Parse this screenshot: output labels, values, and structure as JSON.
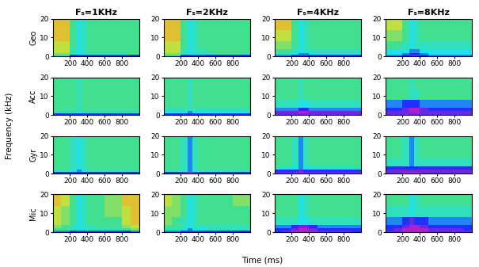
{
  "chart_data": {
    "type": "heatmap",
    "xlabel": "Time (ms)",
    "ylabel": "Frequency (kHz)",
    "columns": [
      "Fₛ=1KHz",
      "Fₛ=2KHz",
      "Fₛ=4KHz",
      "Fₛ=8KHz"
    ],
    "rows": [
      "Geo",
      "Acc",
      "Gyr",
      "Mic"
    ],
    "xlim": [
      0,
      1000
    ],
    "xticks": [
      200,
      400,
      600,
      800
    ],
    "ylim": [
      0,
      20
    ],
    "yticks": [
      0,
      10,
      20
    ],
    "time_edges": [
      0,
      100,
      200,
      280,
      330,
      400,
      500,
      600,
      800,
      900,
      1000
    ],
    "freq_edges": [
      0,
      1,
      2,
      4,
      8,
      14,
      20
    ],
    "color_range": [
      0,
      10
    ],
    "cells": [
      [
        [
          [
            4,
            4,
            2,
            1,
            1,
            1,
            1,
            1,
            1,
            2
          ],
          [
            7,
            7,
            5,
            4,
            4,
            5,
            5,
            5,
            5,
            6
          ],
          [
            8,
            8,
            5,
            4,
            5,
            6,
            6,
            6,
            6,
            6
          ],
          [
            8,
            8,
            6,
            4,
            5,
            6,
            6,
            6,
            6,
            6
          ],
          [
            9,
            9,
            6,
            4,
            5,
            6,
            6,
            6,
            6,
            6
          ],
          [
            9,
            9,
            6,
            4,
            5,
            6,
            6,
            6,
            6,
            6
          ]
        ],
        [
          [
            4,
            4,
            2,
            1,
            1,
            1,
            2,
            2,
            2,
            2
          ],
          [
            7,
            7,
            5,
            4,
            4,
            5,
            5,
            5,
            5,
            5
          ],
          [
            8,
            8,
            5,
            4,
            5,
            5,
            6,
            6,
            6,
            6
          ],
          [
            8,
            8,
            6,
            4,
            5,
            6,
            6,
            6,
            6,
            6
          ],
          [
            9,
            9,
            6,
            4,
            5,
            6,
            6,
            6,
            6,
            6
          ],
          [
            9,
            9,
            6,
            4,
            5,
            6,
            6,
            6,
            6,
            6
          ]
        ],
        [
          [
            3,
            3,
            2,
            1,
            1,
            2,
            2,
            2,
            2,
            2
          ],
          [
            5,
            5,
            4,
            3,
            3,
            4,
            4,
            4,
            4,
            4
          ],
          [
            6,
            6,
            5,
            4,
            5,
            5,
            5,
            5,
            5,
            5
          ],
          [
            7,
            7,
            6,
            4,
            5,
            6,
            6,
            6,
            6,
            6
          ],
          [
            8,
            8,
            6,
            4,
            5,
            6,
            6,
            6,
            6,
            6
          ],
          [
            9,
            9,
            6,
            4,
            5,
            6,
            6,
            6,
            6,
            6
          ]
        ],
        [
          [
            3,
            3,
            2,
            1,
            1,
            2,
            3,
            3,
            3,
            3
          ],
          [
            4,
            4,
            3,
            2,
            2,
            3,
            4,
            4,
            4,
            4
          ],
          [
            4,
            4,
            4,
            3,
            3,
            4,
            4,
            4,
            4,
            4
          ],
          [
            6,
            6,
            5,
            4,
            5,
            5,
            5,
            5,
            5,
            5
          ],
          [
            7,
            7,
            6,
            4,
            5,
            6,
            6,
            6,
            6,
            6
          ],
          [
            8,
            8,
            6,
            4,
            5,
            6,
            6,
            6,
            6,
            6
          ]
        ]
      ],
      [
        [
          [
            2,
            2,
            2,
            2,
            2,
            2,
            2,
            2,
            2,
            2
          ],
          [
            5,
            5,
            5,
            4,
            5,
            5,
            5,
            5,
            5,
            5
          ],
          [
            6,
            6,
            6,
            5,
            6,
            6,
            6,
            6,
            6,
            6
          ],
          [
            6,
            6,
            6,
            5,
            6,
            6,
            6,
            6,
            6,
            6
          ],
          [
            6,
            6,
            6,
            5,
            6,
            6,
            6,
            6,
            6,
            6
          ],
          [
            6,
            6,
            6,
            5,
            6,
            6,
            6,
            6,
            6,
            6
          ]
        ],
        [
          [
            2,
            2,
            2,
            2,
            2,
            2,
            2,
            2,
            2,
            2
          ],
          [
            4,
            4,
            4,
            3,
            4,
            4,
            4,
            4,
            4,
            4
          ],
          [
            5,
            5,
            5,
            5,
            5,
            5,
            5,
            5,
            5,
            5
          ],
          [
            6,
            6,
            6,
            5,
            6,
            6,
            6,
            6,
            6,
            6
          ],
          [
            6,
            6,
            6,
            5,
            6,
            6,
            6,
            6,
            6,
            6
          ],
          [
            6,
            6,
            6,
            5,
            6,
            6,
            6,
            6,
            6,
            6
          ]
        ],
        [
          [
            1,
            1,
            1,
            1,
            1,
            1,
            1,
            1,
            1,
            1
          ],
          [
            1,
            1,
            1,
            0,
            0,
            1,
            1,
            1,
            1,
            1
          ],
          [
            3,
            3,
            3,
            2,
            2,
            3,
            3,
            3,
            3,
            3
          ],
          [
            5,
            5,
            5,
            4,
            4,
            5,
            5,
            5,
            5,
            5
          ],
          [
            6,
            6,
            6,
            5,
            6,
            6,
            6,
            6,
            6,
            6
          ],
          [
            6,
            6,
            6,
            5,
            6,
            6,
            6,
            6,
            6,
            6
          ]
        ],
        [
          [
            1,
            1,
            1,
            1,
            1,
            1,
            1,
            1,
            1,
            1
          ],
          [
            1,
            1,
            1,
            0,
            0,
            1,
            1,
            1,
            1,
            1
          ],
          [
            2,
            2,
            1,
            0,
            0,
            1,
            2,
            2,
            2,
            2
          ],
          [
            3,
            3,
            2,
            2,
            2,
            3,
            3,
            3,
            3,
            3
          ],
          [
            6,
            6,
            6,
            5,
            5,
            6,
            6,
            6,
            6,
            6
          ],
          [
            6,
            6,
            6,
            5,
            6,
            6,
            6,
            6,
            6,
            6
          ]
        ]
      ],
      [
        [
          [
            2,
            2,
            2,
            2,
            2,
            2,
            2,
            2,
            2,
            2
          ],
          [
            5,
            5,
            4,
            3,
            4,
            5,
            5,
            5,
            5,
            5
          ],
          [
            6,
            6,
            5,
            4,
            5,
            6,
            6,
            6,
            6,
            6
          ],
          [
            6,
            6,
            5,
            4,
            5,
            6,
            6,
            6,
            6,
            6
          ],
          [
            6,
            6,
            5,
            4,
            5,
            6,
            6,
            6,
            6,
            6
          ],
          [
            6,
            6,
            5,
            4,
            5,
            6,
            6,
            6,
            6,
            6
          ]
        ],
        [
          [
            2,
            2,
            1,
            0,
            1,
            2,
            2,
            2,
            2,
            2
          ],
          [
            5,
            5,
            4,
            3,
            4,
            5,
            5,
            5,
            5,
            5
          ],
          [
            6,
            6,
            5,
            3,
            5,
            6,
            6,
            6,
            6,
            6
          ],
          [
            6,
            6,
            5,
            3,
            5,
            6,
            6,
            6,
            6,
            6
          ],
          [
            6,
            6,
            5,
            3,
            5,
            6,
            6,
            6,
            6,
            6
          ],
          [
            6,
            6,
            5,
            3,
            5,
            6,
            6,
            6,
            6,
            6
          ]
        ],
        [
          [
            1,
            1,
            1,
            0,
            1,
            1,
            1,
            1,
            1,
            1
          ],
          [
            2,
            2,
            2,
            1,
            2,
            2,
            2,
            2,
            2,
            2
          ],
          [
            5,
            5,
            4,
            3,
            4,
            5,
            5,
            5,
            5,
            5
          ],
          [
            6,
            6,
            5,
            3,
            5,
            6,
            6,
            6,
            6,
            6
          ],
          [
            6,
            6,
            5,
            3,
            5,
            6,
            6,
            6,
            6,
            6
          ],
          [
            6,
            6,
            5,
            3,
            5,
            6,
            6,
            6,
            6,
            6
          ]
        ],
        [
          [
            1,
            1,
            0,
            0,
            0,
            1,
            1,
            1,
            1,
            1
          ],
          [
            1,
            1,
            1,
            1,
            1,
            1,
            1,
            1,
            1,
            1
          ],
          [
            2,
            2,
            2,
            2,
            2,
            2,
            2,
            2,
            2,
            2
          ],
          [
            5,
            5,
            5,
            3,
            5,
            5,
            5,
            5,
            5,
            5
          ],
          [
            6,
            6,
            5,
            3,
            5,
            6,
            6,
            6,
            6,
            6
          ],
          [
            6,
            6,
            5,
            3,
            5,
            6,
            6,
            6,
            6,
            6
          ]
        ]
      ],
      [
        [
          [
            3,
            3,
            2,
            1,
            1,
            1,
            1,
            1,
            2,
            3
          ],
          [
            6,
            6,
            5,
            4,
            4,
            5,
            5,
            5,
            6,
            7
          ],
          [
            7,
            6,
            5,
            4,
            5,
            5,
            6,
            6,
            7,
            8
          ],
          [
            8,
            7,
            6,
            4,
            5,
            6,
            6,
            6,
            8,
            9
          ],
          [
            8,
            7,
            6,
            4,
            5,
            6,
            6,
            7,
            8,
            9
          ],
          [
            9,
            8,
            6,
            4,
            5,
            6,
            6,
            7,
            9,
            9
          ]
        ],
        [
          [
            3,
            3,
            2,
            1,
            1,
            1,
            2,
            2,
            2,
            2
          ],
          [
            5,
            5,
            4,
            3,
            4,
            4,
            5,
            5,
            5,
            5
          ],
          [
            6,
            6,
            5,
            4,
            5,
            5,
            5,
            5,
            5,
            5
          ],
          [
            7,
            6,
            5,
            4,
            5,
            6,
            6,
            6,
            6,
            6
          ],
          [
            7,
            7,
            6,
            4,
            5,
            6,
            6,
            6,
            6,
            6
          ],
          [
            8,
            7,
            6,
            4,
            5,
            6,
            6,
            6,
            7,
            7
          ]
        ],
        [
          [
            2,
            1,
            0,
            0,
            0,
            0,
            1,
            1,
            1,
            2
          ],
          [
            2,
            2,
            1,
            0,
            0,
            1,
            2,
            2,
            2,
            2
          ],
          [
            3,
            3,
            2,
            1,
            1,
            2,
            3,
            3,
            3,
            3
          ],
          [
            5,
            5,
            5,
            4,
            4,
            5,
            5,
            5,
            5,
            5
          ],
          [
            6,
            6,
            6,
            4,
            5,
            6,
            6,
            6,
            6,
            6
          ],
          [
            6,
            6,
            6,
            4,
            5,
            6,
            6,
            6,
            6,
            6
          ]
        ],
        [
          [
            1,
            1,
            0,
            0,
            0,
            0,
            1,
            1,
            1,
            1
          ],
          [
            2,
            1,
            0,
            0,
            0,
            0,
            1,
            1,
            1,
            2
          ],
          [
            2,
            2,
            1,
            0,
            0,
            1,
            2,
            2,
            2,
            2
          ],
          [
            3,
            3,
            2,
            1,
            2,
            2,
            3,
            3,
            3,
            3
          ],
          [
            5,
            5,
            5,
            4,
            5,
            5,
            5,
            5,
            5,
            5
          ],
          [
            6,
            6,
            6,
            4,
            5,
            6,
            6,
            6,
            6,
            6
          ]
        ]
      ]
    ]
  }
}
